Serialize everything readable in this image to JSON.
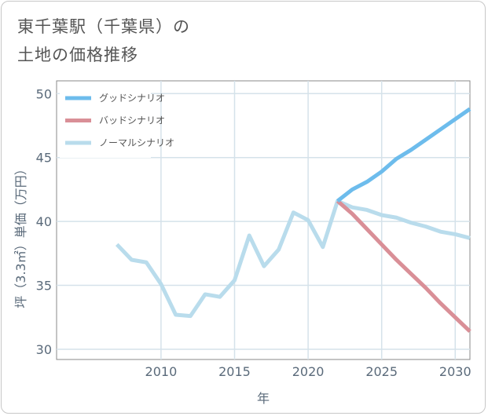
{
  "header": {
    "title_line1": "東千葉駅（千葉県）の",
    "title_line2": "土地の価格推移"
  },
  "chart_data": {
    "type": "line",
    "title": "東千葉駅（千葉県）の土地の価格推移",
    "xlabel": "年",
    "ylabel": "坪（3.3㎡）単価（万円）",
    "xlim": [
      2002.9,
      2031
    ],
    "ylim": [
      29.2,
      51
    ],
    "x_ticks": [
      2010,
      2015,
      2020,
      2025,
      2030
    ],
    "y_ticks": [
      30,
      35,
      40,
      45,
      50
    ],
    "grid": true,
    "legend_position": "top-left",
    "series": [
      {
        "name": "グッドシナリオ",
        "color": "#6dbcec",
        "x": [
          2022,
          2023,
          2024,
          2025,
          2026,
          2027,
          2028,
          2029,
          2030,
          2031
        ],
        "y": [
          41.6,
          42.5,
          43.1,
          43.9,
          44.9,
          45.6,
          46.4,
          47.2,
          48.0,
          48.8
        ]
      },
      {
        "name": "バッドシナリオ",
        "color": "#d98f97",
        "x": [
          2022,
          2023,
          2024,
          2025,
          2026,
          2027,
          2028,
          2029,
          2030,
          2031
        ],
        "y": [
          41.6,
          40.6,
          39.4,
          38.2,
          37.0,
          35.9,
          34.8,
          33.6,
          32.5,
          31.4
        ]
      },
      {
        "name": "ノーマルシナリオ",
        "color": "#b9dcec",
        "x": [
          2007,
          2008,
          2009,
          2010,
          2011,
          2012,
          2013,
          2014,
          2015,
          2016,
          2017,
          2018,
          2019,
          2020,
          2021,
          2022,
          2023,
          2024,
          2025,
          2026,
          2027,
          2028,
          2029,
          2030,
          2031
        ],
        "y": [
          38.2,
          37.0,
          36.8,
          35.1,
          32.7,
          32.6,
          34.3,
          34.1,
          35.4,
          38.9,
          36.5,
          37.8,
          40.7,
          40.1,
          38.0,
          41.6,
          41.1,
          40.9,
          40.5,
          40.3,
          39.9,
          39.6,
          39.2,
          39.0,
          38.7
        ]
      }
    ]
  }
}
